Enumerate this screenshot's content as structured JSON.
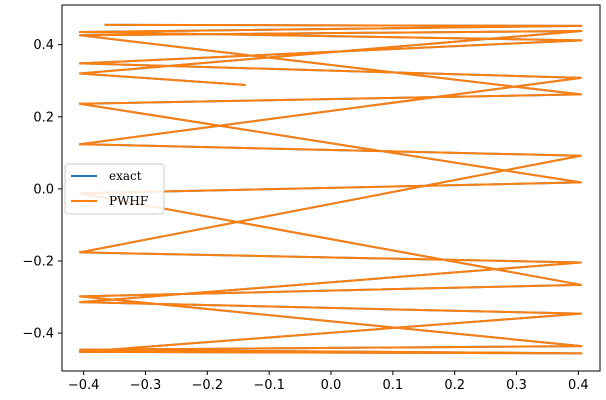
{
  "chart_data": {
    "type": "line",
    "title": "",
    "xlabel": "",
    "ylabel": "",
    "xlim": [
      -0.435,
      0.435
    ],
    "ylim": [
      -0.505,
      0.51
    ],
    "grid": false,
    "legend_position": "center-left",
    "xticks": [
      -0.4,
      -0.3,
      -0.2,
      -0.1,
      0.0,
      0.1,
      0.2,
      0.3,
      0.4
    ],
    "xtick_labels": [
      "−0.4",
      "−0.3",
      "−0.2",
      "−0.1",
      "0.0",
      "0.1",
      "0.2",
      "0.3",
      "0.4"
    ],
    "yticks": [
      -0.4,
      -0.2,
      0.0,
      0.2,
      0.4
    ],
    "ytick_labels": [
      "−0.4",
      "−0.2",
      "0.0",
      "0.2",
      "0.4"
    ],
    "series": [
      {
        "name": "exact",
        "color": "#1f77b4",
        "points": [
          [
            -0.366,
            0.455
          ],
          [
            0.405,
            0.452
          ],
          [
            -0.406,
            0.435
          ],
          [
            0.405,
            0.412
          ],
          [
            -0.406,
            0.348
          ],
          [
            0.404,
            0.308
          ],
          [
            -0.406,
            0.124
          ],
          [
            0.404,
            0.092
          ],
          [
            -0.406,
            -0.176
          ],
          [
            0.404,
            -0.204
          ],
          [
            -0.406,
            -0.314
          ],
          [
            0.404,
            -0.346
          ],
          [
            -0.406,
            -0.452
          ],
          [
            0.405,
            -0.456
          ],
          [
            -0.406,
            -0.446
          ],
          [
            0.405,
            -0.436
          ],
          [
            -0.406,
            -0.298
          ],
          [
            0.404,
            -0.266
          ],
          [
            -0.406,
            -0.012
          ],
          [
            0.404,
            0.018
          ],
          [
            -0.406,
            0.236
          ],
          [
            0.404,
            0.262
          ],
          [
            -0.406,
            0.426
          ],
          [
            0.405,
            0.438
          ],
          [
            -0.406,
            0.32
          ],
          [
            -0.138,
            0.288
          ]
        ]
      },
      {
        "name": "PWHF",
        "color": "#ff7f0e",
        "points": [
          [
            -0.366,
            0.455
          ],
          [
            0.405,
            0.452
          ],
          [
            -0.406,
            0.435
          ],
          [
            0.405,
            0.412
          ],
          [
            -0.406,
            0.348
          ],
          [
            0.404,
            0.308
          ],
          [
            -0.406,
            0.124
          ],
          [
            0.404,
            0.092
          ],
          [
            -0.406,
            -0.176
          ],
          [
            0.404,
            -0.204
          ],
          [
            -0.406,
            -0.314
          ],
          [
            0.404,
            -0.346
          ],
          [
            -0.406,
            -0.452
          ],
          [
            0.405,
            -0.456
          ],
          [
            -0.406,
            -0.446
          ],
          [
            0.405,
            -0.436
          ],
          [
            -0.406,
            -0.298
          ],
          [
            0.404,
            -0.266
          ],
          [
            -0.406,
            -0.012
          ],
          [
            0.404,
            0.018
          ],
          [
            -0.406,
            0.236
          ],
          [
            0.404,
            0.262
          ],
          [
            -0.406,
            0.426
          ],
          [
            0.405,
            0.438
          ],
          [
            -0.406,
            0.32
          ],
          [
            -0.138,
            0.288
          ]
        ]
      }
    ]
  }
}
